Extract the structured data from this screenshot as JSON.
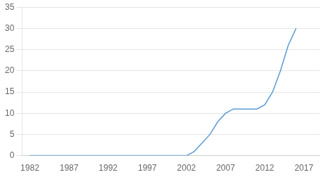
{
  "chart_data": {
    "type": "line",
    "x": [
      1982,
      1983,
      1984,
      1985,
      1986,
      1987,
      1988,
      1989,
      1990,
      1991,
      1992,
      1993,
      1994,
      1995,
      1996,
      1997,
      1998,
      1999,
      2000,
      2001,
      2002,
      2003,
      2004,
      2005,
      2006,
      2007,
      2008,
      2009,
      2010,
      2011,
      2012,
      2013,
      2014,
      2015,
      2016
    ],
    "values": [
      0,
      0,
      0,
      0,
      0,
      0,
      0,
      0,
      0,
      0,
      0,
      0,
      0,
      0,
      0,
      0,
      0,
      0,
      0,
      0,
      0,
      1,
      3,
      5,
      8,
      10,
      11,
      11,
      11,
      11,
      12,
      15,
      20,
      26,
      30
    ],
    "color": "#5B9BD5",
    "xlim": [
      1981,
      2019
    ],
    "ylim": [
      0,
      35
    ],
    "xticks": [
      1982,
      1987,
      1992,
      1997,
      2002,
      2007,
      2012,
      2017
    ],
    "yticks": [
      0,
      5,
      10,
      15,
      20,
      25,
      30,
      35
    ],
    "grid": "y"
  }
}
